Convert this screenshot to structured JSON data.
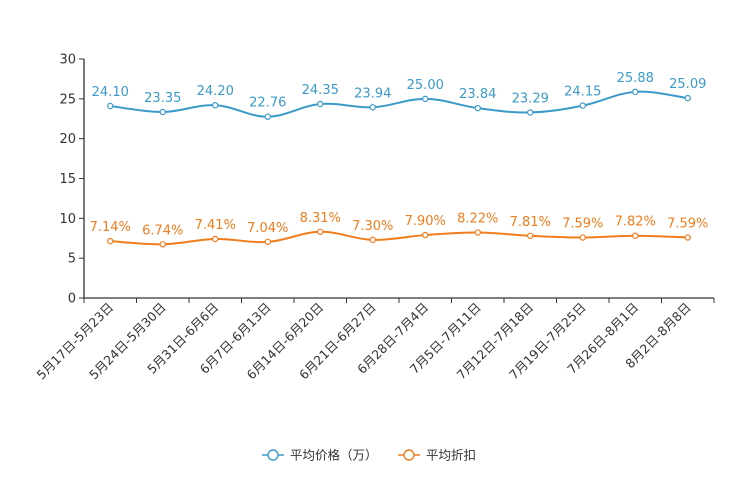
{
  "chart_data": {
    "type": "line",
    "title": "",
    "xlabel": "",
    "ylabel": "",
    "ylim": [
      0,
      30
    ],
    "yticks": [
      0,
      5,
      10,
      15,
      20,
      25,
      30
    ],
    "grid": false,
    "legend_position": "bottom-center",
    "categories": [
      "5月17日-5月23日",
      "5月24日-5月30日",
      "5月31日-6月6日",
      "6月7日-6月13日",
      "6月14日-6月20日",
      "6月21日-6月27日",
      "6月28日-7月4日",
      "7月5日-7月11日",
      "7月12日-7月18日",
      "7月19日-7月25日",
      "7月26日-8月1日",
      "8月2日-8月8日"
    ],
    "series": [
      {
        "name": "平均价格（万）",
        "color": "#3b9ac9",
        "values": [
          24.1,
          23.35,
          24.2,
          22.76,
          24.35,
          23.94,
          25.0,
          23.84,
          23.29,
          24.15,
          25.88,
          25.09
        ],
        "labels": [
          "24.10",
          "23.35",
          "24.20",
          "22.76",
          "24.35",
          "23.94",
          "25.00",
          "23.84",
          "23.29",
          "24.15",
          "25.88",
          "25.09"
        ]
      },
      {
        "name": "平均折扣",
        "color": "#f07c1c",
        "values": [
          7.14,
          6.74,
          7.41,
          7.04,
          8.31,
          7.3,
          7.9,
          8.22,
          7.81,
          7.59,
          7.82,
          7.59
        ],
        "labels": [
          "7.14%",
          "6.74%",
          "7.41%",
          "7.04%",
          "8.31%",
          "7.30%",
          "7.90%",
          "8.22%",
          "7.81%",
          "7.59%",
          "7.82%",
          "7.59%"
        ]
      }
    ]
  }
}
